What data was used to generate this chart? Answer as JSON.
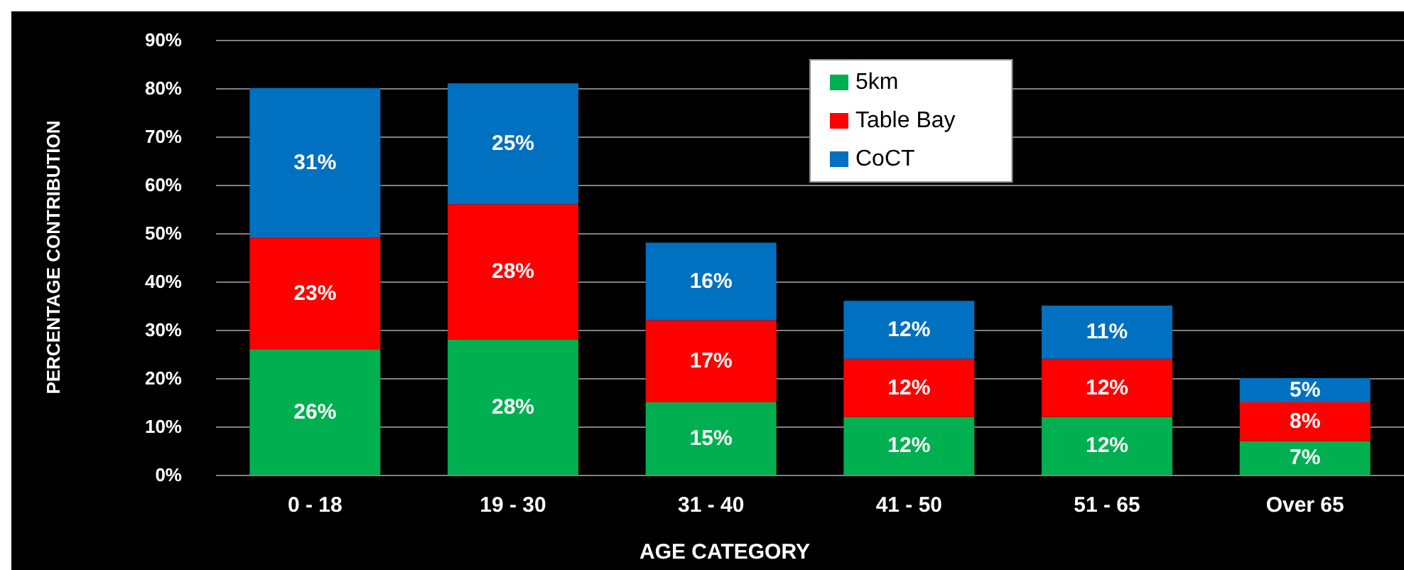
{
  "chart_data": {
    "type": "bar",
    "ylabel": "PERCENTAGE CONTRIBUTION",
    "xlabel": "AGE CATEGORY",
    "categories": [
      "0 - 18",
      "19 - 30",
      "31 - 40",
      "41 - 50",
      "51 - 65",
      "Over 65"
    ],
    "stacked": true,
    "series": [
      {
        "name": "5km",
        "color": "#00b050",
        "values": [
          26,
          28,
          15,
          12,
          12,
          7
        ],
        "value_labels": [
          "26%",
          "28%",
          "15%",
          "12%",
          "12%",
          "7%"
        ]
      },
      {
        "name": "Table Bay",
        "color": "#ff0000",
        "values": [
          23,
          28,
          17,
          12,
          12,
          8
        ],
        "value_labels": [
          "23%",
          "28%",
          "17%",
          "12%",
          "12%",
          "8%"
        ]
      },
      {
        "name": "CoCT",
        "color": "#0070c0",
        "values": [
          31,
          25,
          16,
          12,
          11,
          5
        ],
        "value_labels": [
          "31%",
          "25%",
          "16%",
          "12%",
          "11%",
          "5%"
        ]
      }
    ],
    "ylim": [
      0,
      90
    ],
    "yticks": [
      {
        "value": 0,
        "label": "0%"
      },
      {
        "value": 10,
        "label": "10%"
      },
      {
        "value": 20,
        "label": "20%"
      },
      {
        "value": 30,
        "label": "30%"
      },
      {
        "value": 40,
        "label": "40%"
      },
      {
        "value": 50,
        "label": "50%"
      },
      {
        "value": 60,
        "label": "60%"
      },
      {
        "value": 70,
        "label": "70%"
      },
      {
        "value": 80,
        "label": "80%"
      },
      {
        "value": 90,
        "label": "90%"
      }
    ],
    "grid": "y",
    "legend": "top"
  }
}
